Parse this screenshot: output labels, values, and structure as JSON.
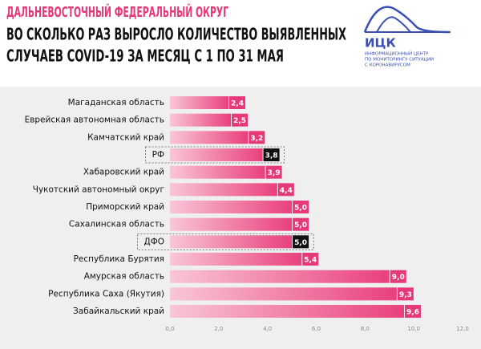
{
  "chart_data": {
    "type": "hbar",
    "title": "ДАЛЬНЕВОСТОЧНЫЙ ФЕДЕРАЛЬНЫЙ ОКРУГ",
    "subtitle": [
      "ВО СКОЛЬКО РАЗ ВЫРОСЛО КОЛИЧЕСТВО ВЫЯВЛЕННЫХ",
      "СЛУЧАЕВ COVID-19 ЗА МЕСЯЦ С 1 ПО 31 МАЯ"
    ],
    "categories": [
      "Магаданская область",
      "Еврейская автономная область",
      "Камчатский край",
      "РФ",
      "Хабаровский край",
      "Чукотский автономный округ",
      "Приморский край",
      "Сахалинская область",
      "ДФО",
      "Республика Бурятия",
      "Амурская область",
      "Республика Саха (Якутия)",
      "Забайкальский край"
    ],
    "values": [
      2.4,
      2.5,
      3.2,
      3.8,
      3.9,
      4.4,
      5.0,
      5.0,
      5.0,
      5.4,
      9.0,
      9.3,
      9.6
    ],
    "value_labels": [
      "2,4",
      "2,5",
      "3,2",
      "3,8",
      "3,9",
      "4,4",
      "5,0",
      "5,0",
      "5,0",
      "5,4",
      "9,0",
      "9,3",
      "9,6"
    ],
    "gradient": [
      "#f9c6d8",
      "#e9407d"
    ],
    "value_label_colors": [
      "#e6397a",
      "#e6397a",
      "#e6397a",
      "#111111",
      "#e6397a",
      "#e6397a",
      "#e6397a",
      "#e6397a",
      "#111111",
      "#e6397a",
      "#e6397a",
      "#e6397a",
      "#e6397a"
    ],
    "xlim": [
      0,
      12
    ],
    "xticks": [
      {
        "value": 0,
        "label": "0,0"
      },
      {
        "value": 2,
        "label": "2,0"
      },
      {
        "value": 4,
        "label": "4,0"
      },
      {
        "value": 6,
        "label": "6,0"
      },
      {
        "value": 8,
        "label": "8,0"
      },
      {
        "value": 10,
        "label": "10,0"
      },
      {
        "value": 12,
        "label": "12,0"
      }
    ]
  },
  "logo": {
    "name": "ИЦК",
    "lines": [
      "ИНФОРМАЦИОННЫЙ ЦЕНТР",
      "ПО МОНИТОРИНГУ СИТУАЦИИ",
      "С КОРОНАВИРУСОМ"
    ]
  }
}
